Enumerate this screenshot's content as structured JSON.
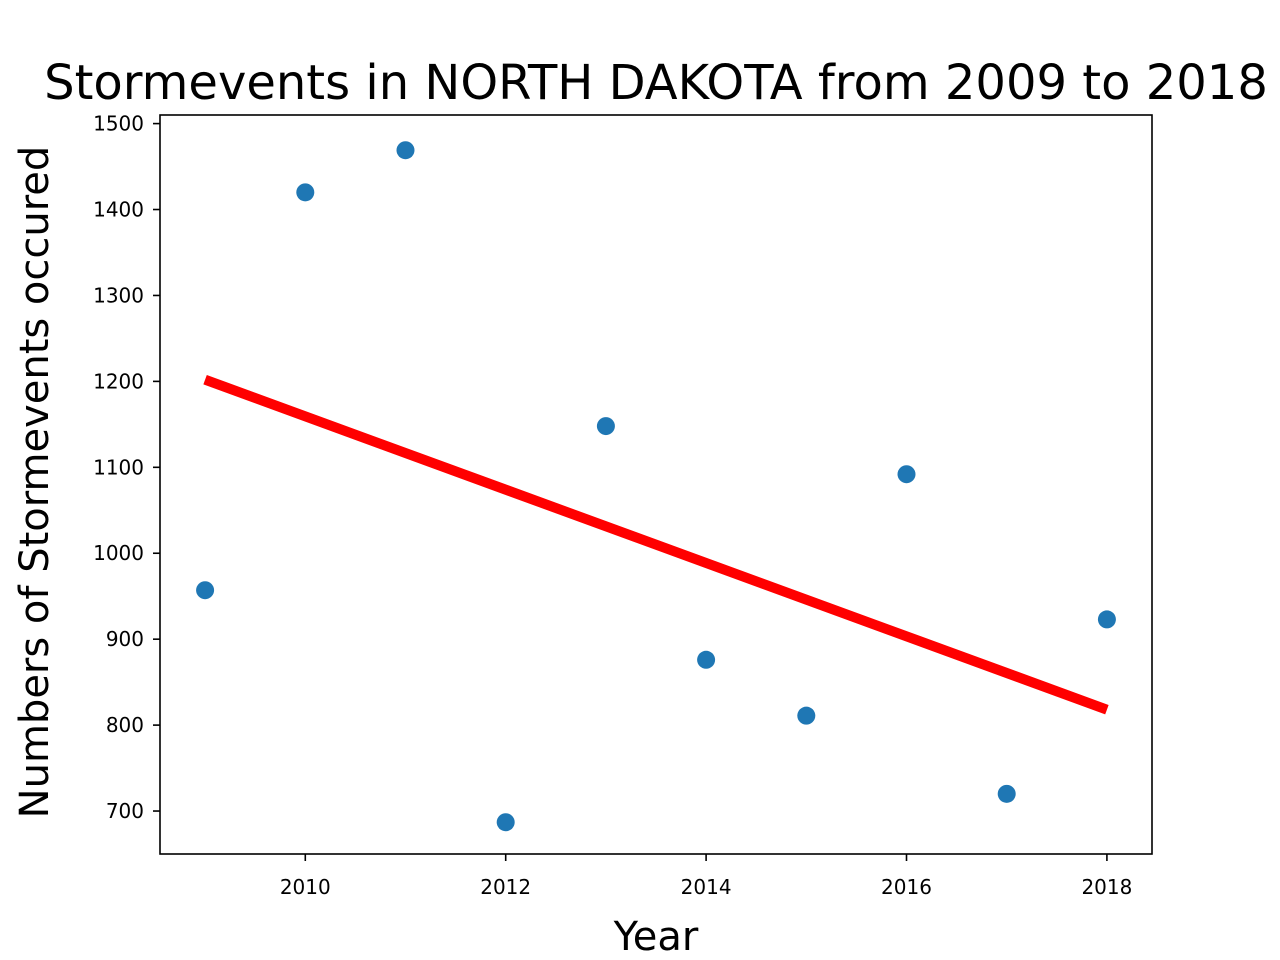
{
  "chart_data": {
    "type": "scatter",
    "title": "Stormevents in NORTH DAKOTA from 2009 to 2018",
    "xlabel": "Year",
    "ylabel": "Numbers of Stormevents occured",
    "xlim": [
      2008.55,
      2018.45
    ],
    "ylim": [
      650,
      1510
    ],
    "xticks": [
      2010,
      2012,
      2014,
      2016,
      2018
    ],
    "yticks": [
      700,
      800,
      900,
      1000,
      1100,
      1200,
      1300,
      1400,
      1500
    ],
    "grid": false,
    "series": [
      {
        "type": "scatter",
        "color": "#1f77b4",
        "points": [
          {
            "x": 2009,
            "y": 957
          },
          {
            "x": 2010,
            "y": 1420
          },
          {
            "x": 2011,
            "y": 1469
          },
          {
            "x": 2012,
            "y": 687
          },
          {
            "x": 2013,
            "y": 1148
          },
          {
            "x": 2014,
            "y": 876
          },
          {
            "x": 2015,
            "y": 811
          },
          {
            "x": 2016,
            "y": 1092
          },
          {
            "x": 2017,
            "y": 720
          },
          {
            "x": 2018,
            "y": 923
          }
        ]
      },
      {
        "type": "line",
        "color": "#ff0000",
        "points": [
          {
            "x": 2009,
            "y": 1202
          },
          {
            "x": 2018,
            "y": 818
          }
        ]
      }
    ]
  }
}
